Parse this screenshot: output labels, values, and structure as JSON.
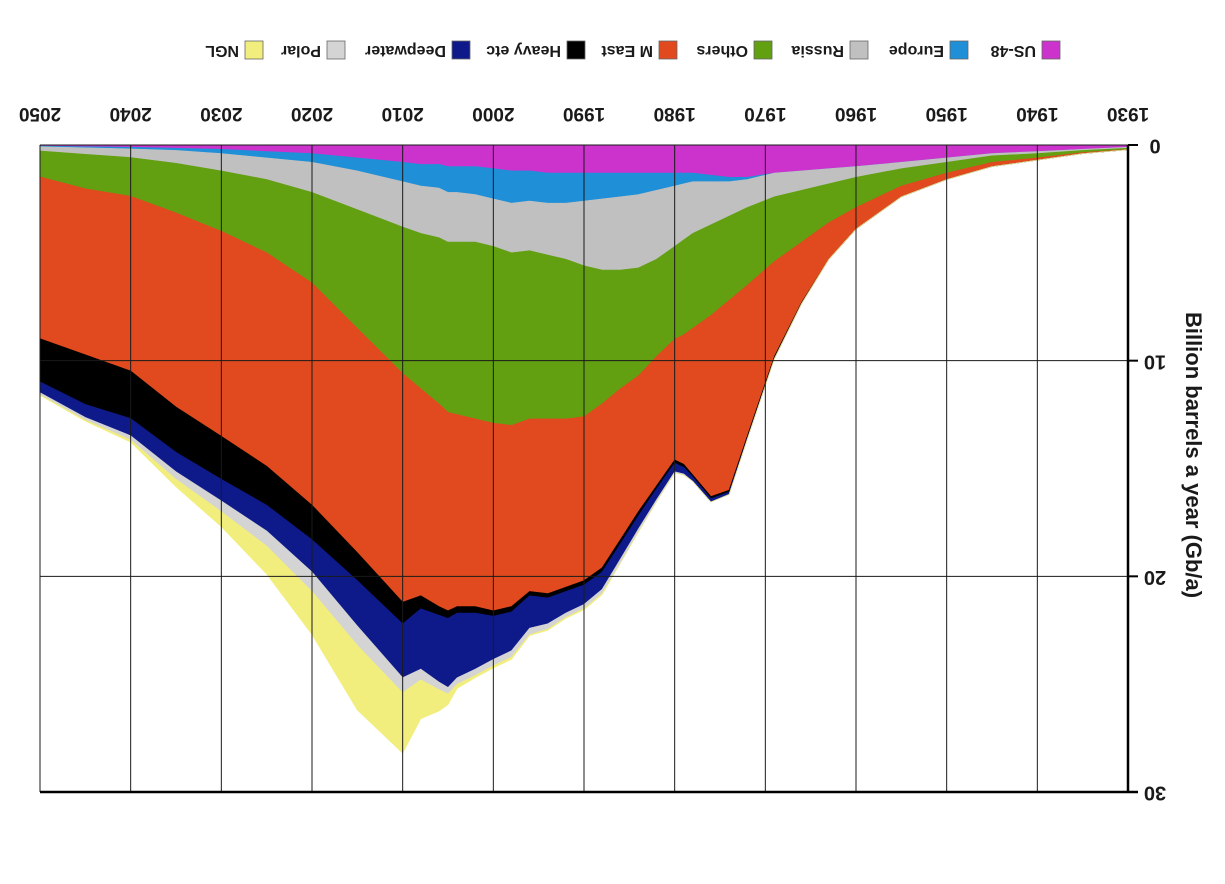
{
  "chart_data": {
    "type": "area",
    "orientation": "rotated 180 degrees (upside down)",
    "ylabel": "Billion barrels a year (Gb/a)",
    "x_ticks": [
      "1930",
      "1940",
      "1950",
      "1960",
      "1970",
      "1980",
      "1990",
      "2000",
      "2010",
      "2020",
      "2030",
      "2040",
      "2050"
    ],
    "y_ticks": [
      "0",
      "10",
      "20",
      "30"
    ],
    "xlim": [
      1930,
      2050
    ],
    "ylim": [
      0,
      30
    ],
    "grid": true,
    "legend_position": "top",
    "x": [
      1930,
      1935,
      1940,
      1945,
      1950,
      1955,
      1960,
      1963,
      1966,
      1969,
      1972,
      1974,
      1976,
      1978,
      1979,
      1980,
      1982,
      1984,
      1986,
      1988,
      1990,
      1992,
      1994,
      1996,
      1998,
      2000,
      2002,
      2004,
      2005,
      2006,
      2008,
      2010,
      2015,
      2020,
      2025,
      2030,
      2035,
      2040,
      2045,
      2050
    ],
    "series": [
      {
        "name": "US-48",
        "color": "#cc33cc",
        "values": [
          0.1,
          0.2,
          0.3,
          0.4,
          0.6,
          0.8,
          1.0,
          1.1,
          1.2,
          1.3,
          1.5,
          1.5,
          1.4,
          1.3,
          1.3,
          1.3,
          1.3,
          1.3,
          1.3,
          1.3,
          1.3,
          1.3,
          1.3,
          1.2,
          1.2,
          1.1,
          1.0,
          1.0,
          1.0,
          0.9,
          0.9,
          0.8,
          0.6,
          0.4,
          0.3,
          0.2,
          0.15,
          0.1,
          0.08,
          0.05
        ]
      },
      {
        "name": "Europe",
        "color": "#1f8fd8",
        "values": [
          0,
          0,
          0,
          0,
          0,
          0,
          0,
          0,
          0,
          0,
          0.1,
          0.2,
          0.3,
          0.4,
          0.5,
          0.6,
          0.8,
          1.0,
          1.1,
          1.2,
          1.3,
          1.4,
          1.4,
          1.4,
          1.5,
          1.4,
          1.3,
          1.2,
          1.2,
          1.1,
          1.0,
          0.9,
          0.6,
          0.4,
          0.3,
          0.2,
          0.1,
          0.08,
          0.05,
          0.03
        ]
      },
      {
        "name": "Russia",
        "color": "#c0c0c0",
        "values": [
          0.05,
          0.05,
          0.1,
          0.1,
          0.2,
          0.3,
          0.5,
          0.7,
          0.9,
          1.1,
          1.3,
          1.6,
          2.0,
          2.4,
          2.6,
          2.8,
          3.2,
          3.4,
          3.4,
          3.3,
          3.0,
          2.6,
          2.4,
          2.3,
          2.3,
          2.2,
          2.2,
          2.3,
          2.3,
          2.3,
          2.2,
          2.1,
          1.8,
          1.4,
          1.0,
          0.8,
          0.6,
          0.4,
          0.3,
          0.2
        ]
      },
      {
        "name": "Others",
        "color": "#62a012",
        "values": [
          0.05,
          0.1,
          0.2,
          0.3,
          0.5,
          0.8,
          1.4,
          1.8,
          2.4,
          3.0,
          3.6,
          3.9,
          4.2,
          4.4,
          4.4,
          4.3,
          4.5,
          5.0,
          5.5,
          6.2,
          7.0,
          7.4,
          7.6,
          7.8,
          8.0,
          8.2,
          8.2,
          8.0,
          7.9,
          7.7,
          7.2,
          6.8,
          5.5,
          4.2,
          3.4,
          2.8,
          2.3,
          1.8,
          1.6,
          1.2
        ]
      },
      {
        "name": "M East",
        "color": "#e04a1e",
        "values": [
          0.02,
          0.05,
          0.1,
          0.2,
          0.3,
          0.5,
          1.0,
          1.7,
          2.8,
          4.4,
          7.0,
          8.8,
          8.4,
          6.8,
          6.0,
          5.6,
          6.0,
          6.3,
          7.0,
          7.6,
          7.6,
          7.8,
          8.1,
          8.0,
          8.4,
          8.7,
          8.7,
          8.9,
          9.2,
          9.4,
          9.6,
          10.6,
          10.4,
          10.3,
          9.9,
          9.5,
          9.0,
          8.1,
          7.7,
          7.5
        ]
      },
      {
        "name": "Heavy etc",
        "color": "#000000",
        "values": [
          0,
          0,
          0,
          0,
          0,
          0,
          0,
          0,
          0.05,
          0.1,
          0.1,
          0.1,
          0.1,
          0.1,
          0.15,
          0.15,
          0.15,
          0.2,
          0.2,
          0.2,
          0.2,
          0.2,
          0.2,
          0.2,
          0.25,
          0.25,
          0.3,
          0.3,
          0.35,
          0.4,
          0.6,
          1.0,
          1.3,
          1.6,
          1.8,
          2.0,
          2.1,
          2.2,
          2.3,
          2.0
        ]
      },
      {
        "name": "Deepwater",
        "color": "#0e1a8a",
        "values": [
          0,
          0,
          0,
          0,
          0,
          0,
          0,
          0,
          0,
          0,
          0.05,
          0.1,
          0.15,
          0.2,
          0.3,
          0.4,
          0.5,
          0.6,
          0.7,
          0.8,
          0.9,
          1.0,
          1.2,
          1.5,
          1.8,
          2.0,
          2.6,
          3.0,
          3.2,
          3.1,
          2.8,
          2.5,
          2.1,
          1.5,
          1.2,
          1.0,
          0.9,
          0.8,
          0.6,
          0.5
        ]
      },
      {
        "name": "Polar",
        "color": "#d4d4d4",
        "values": [
          0,
          0,
          0,
          0,
          0,
          0,
          0,
          0,
          0,
          0,
          0,
          0,
          0,
          0,
          0.05,
          0.05,
          0.1,
          0.15,
          0.2,
          0.2,
          0.2,
          0.2,
          0.25,
          0.3,
          0.3,
          0.3,
          0.3,
          0.3,
          0.3,
          0.35,
          0.5,
          0.7,
          0.9,
          0.9,
          0.7,
          0.5,
          0.35,
          0.2,
          0.12,
          0.1
        ]
      },
      {
        "name": "NGL",
        "color": "#f2ee7e",
        "values": [
          0,
          0,
          0,
          0,
          0,
          0,
          0,
          0,
          0,
          0,
          0,
          0,
          0,
          0,
          0,
          0,
          0,
          0,
          0,
          0.05,
          0.05,
          0.05,
          0.05,
          0.05,
          0.1,
          0.1,
          0.1,
          0.2,
          0.5,
          1.0,
          1.8,
          2.8,
          3.0,
          2.0,
          1.3,
          0.7,
          0.35,
          0.1,
          0.05,
          0.03
        ]
      }
    ]
  },
  "legend_order": [
    "US-48",
    "Europe",
    "Russia",
    "Others",
    "M East",
    "Heavy etc",
    "Deepwater",
    "Polar",
    "NGL"
  ]
}
